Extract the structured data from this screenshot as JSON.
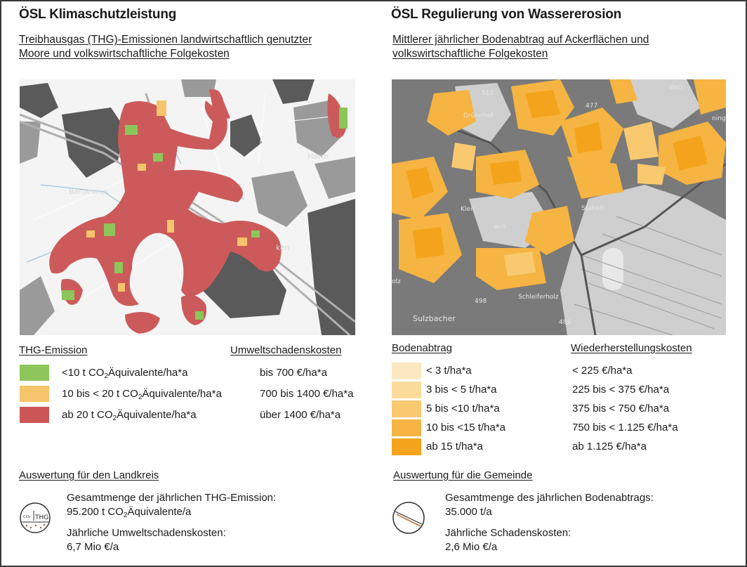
{
  "left": {
    "title": "ÖSL Klimaschutzleistung",
    "subtitle_line1": "Treibhausgas (THG)-Emissionen landwirtschaftlich genutzter",
    "subtitle_line2": "Moore und volkswirtschaftliche Folgekosten",
    "legend": {
      "heading_a": "THG-Emission",
      "heading_b": "Umweltschadenskosten",
      "items": [
        {
          "color": "#8cc65a",
          "pre": "<10 t CO",
          "sub": "2",
          "post": "Äquivalente/ha*a",
          "cost": "bis 700 €/ha*a"
        },
        {
          "color": "#f6c46a",
          "pre": "10 bis < 20 t CO",
          "sub": "2",
          "post": "Äquivalente/ha*a",
          "cost": "700 bis 1400 €/ha*a"
        },
        {
          "color": "#cc5656",
          "pre": "ab 20 t CO",
          "sub": "2",
          "post": "Äquivalente/ha*a",
          "cost": "über 1400 €/ha*a"
        }
      ]
    },
    "section": "Auswertung für den Landkreis",
    "stat1_label": "Gesamtmenge der jährlichen THG-Emission:",
    "stat1_value_pre": "95.200 t CO",
    "stat1_value_sub": "2",
    "stat1_value_post": "Äquivalente/a",
    "stat2_label": "Jährliche Umweltschadenskosten:",
    "stat2_value": "6,7 Mio €/a",
    "icon_label": "THG",
    "icon_small": "CO₂"
  },
  "right": {
    "title": "ÖSL Regulierung von Wassererosion",
    "subtitle_line1": "Mittlerer jährlicher Bodenabtrag auf Ackerflächen und",
    "subtitle_line2": "volkswirtschaftliche Folgekosten",
    "legend": {
      "heading_a": "Bodenabtrag",
      "heading_b": "Wiederherstellungskosten",
      "items": [
        {
          "color": "#fbe8c0",
          "label": "< 3 t/ha*a",
          "cost": "< 225 €/ha*a"
        },
        {
          "color": "#fbdb9a",
          "label": "3 bis < 5 t/ha*a",
          "cost": "225 bis < 375 €/ha*a"
        },
        {
          "color": "#f9c970",
          "label": "5 bis <10 t/ha*a",
          "cost": "375 bis < 750 €/ha*a"
        },
        {
          "color": "#f6b442",
          "label": "10 bis <15 t/ha*a",
          "cost": "750 bis < 1.125  €/ha*a"
        },
        {
          "color": "#f3a41c",
          "label": "ab 15 t/ha*a",
          "cost": "ab 1.125  €/ha*a"
        }
      ]
    },
    "section": "Auswertung für die Gemeinde",
    "stat1_label": "Gesamtmenge des jährlichen Bodenabtrags:",
    "stat1_value": "35.000 t/a",
    "stat2_label": "Jährliche Schadenskosten:",
    "stat2_value": "2,6 Mio €/a"
  },
  "map_labels": {
    "left": [
      "Bardewick",
      "Harm",
      "ken"
    ],
    "right": [
      "511",
      "Grünnhof",
      "477",
      "Weir",
      "ning",
      "Kleir",
      "Staberl",
      "ach",
      "498",
      "Schleiferholz",
      "Sulzbacher",
      "482",
      "olz"
    ]
  }
}
